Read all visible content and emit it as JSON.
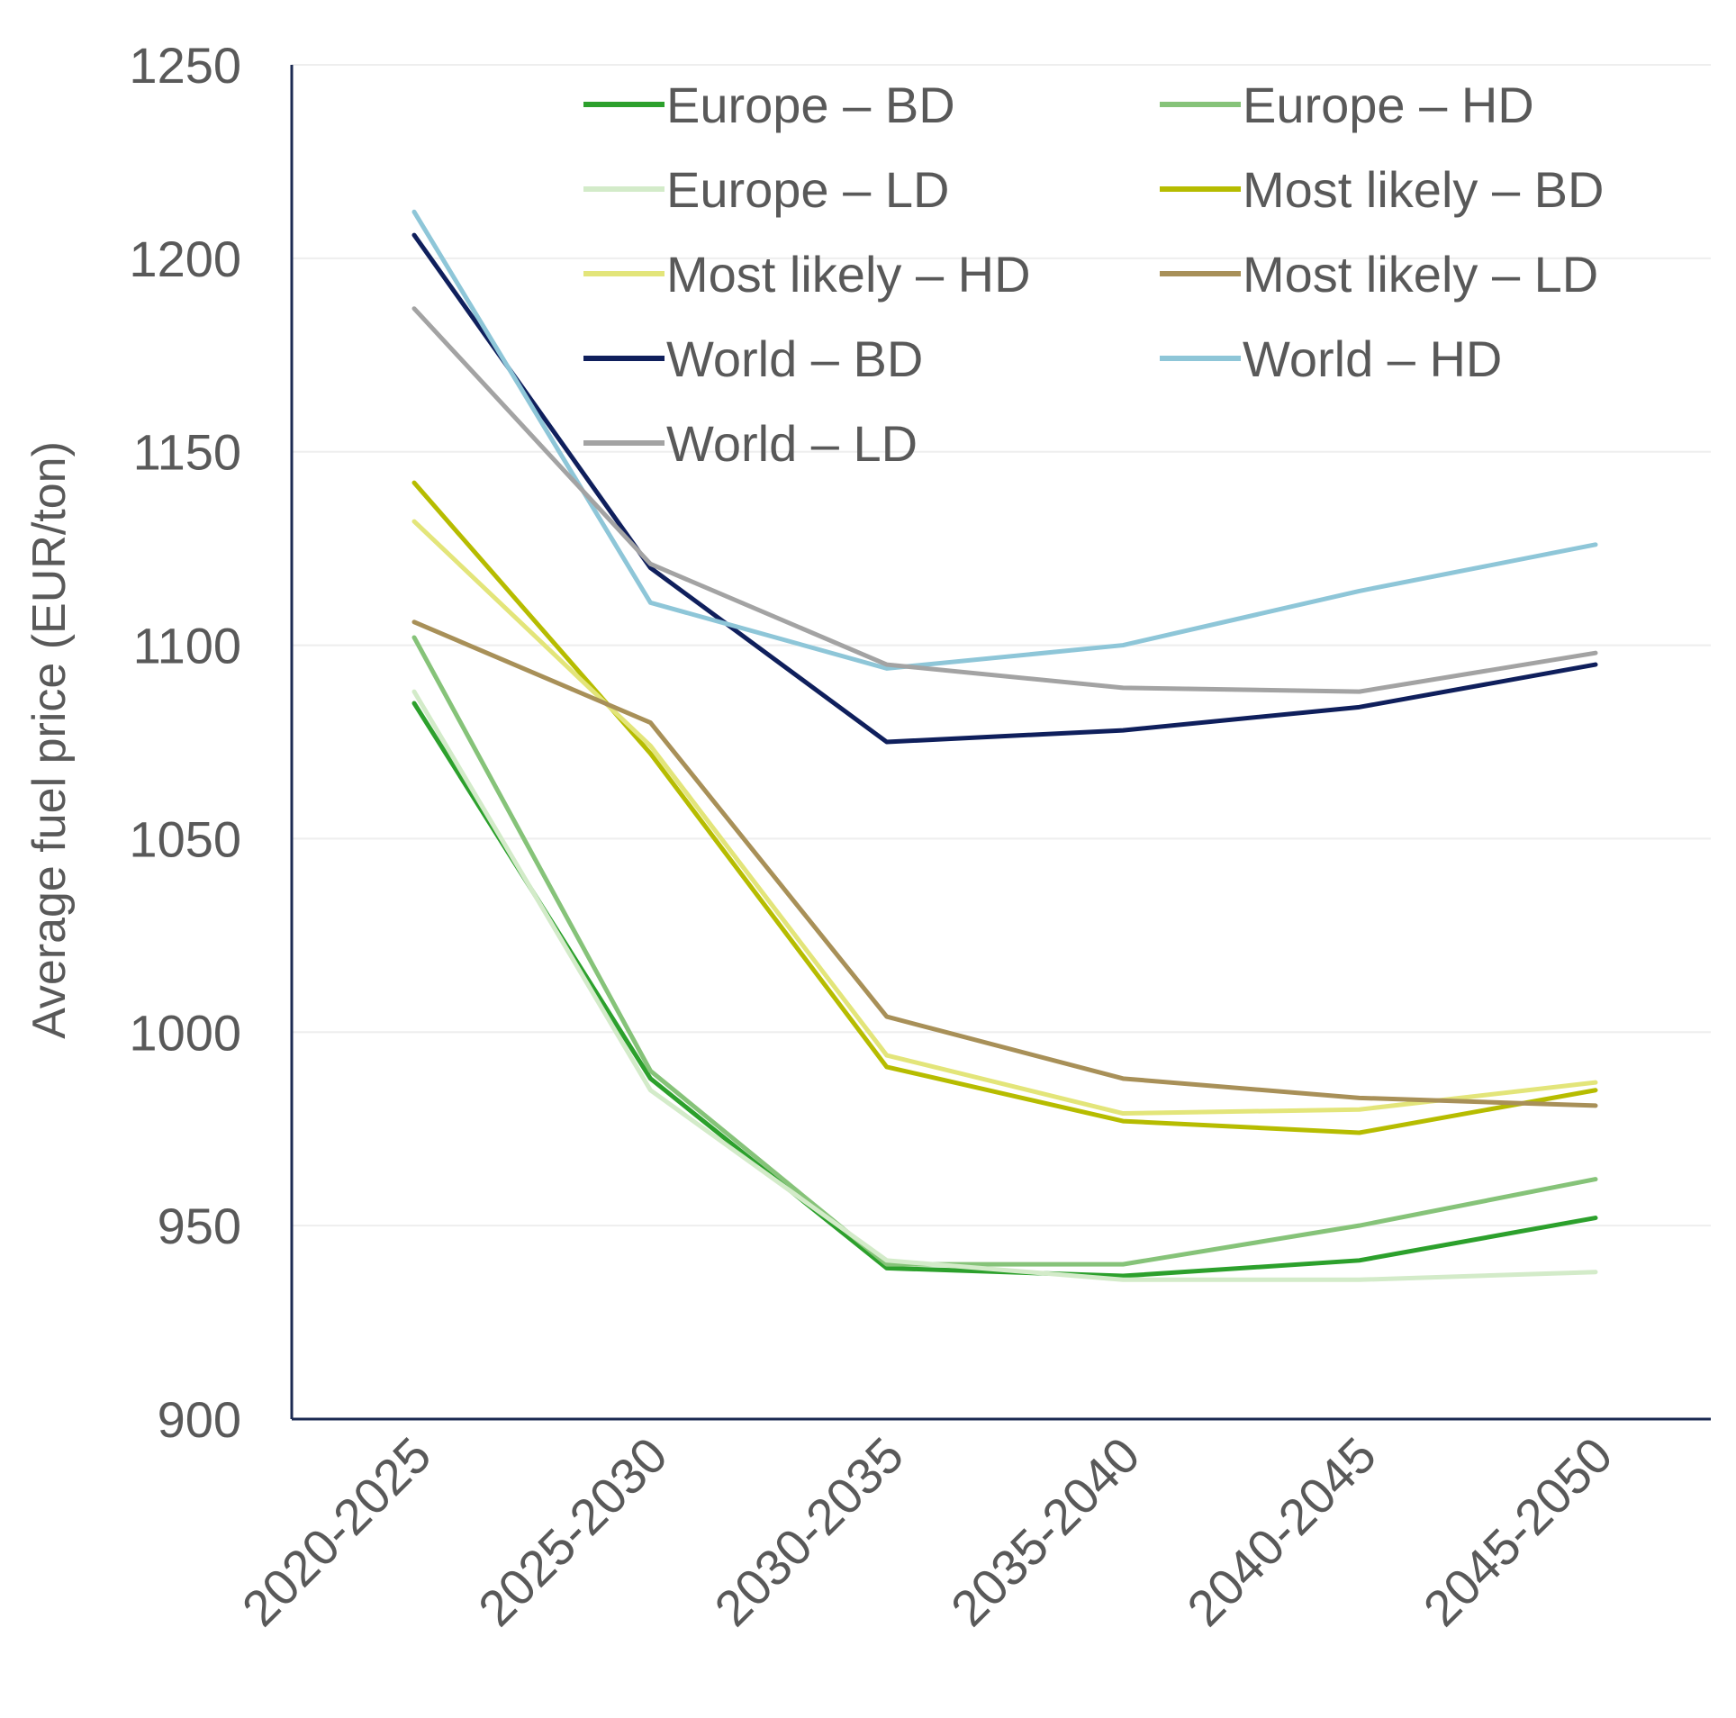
{
  "chart_data": {
    "type": "line",
    "title": "",
    "xlabel": "",
    "ylabel": "Average fuel price (EUR/ton)",
    "ylim": [
      900,
      1250
    ],
    "yticks": [
      "900",
      "950",
      "1000",
      "1050",
      "1100",
      "1150",
      "1200",
      "1250"
    ],
    "categories": [
      "2020-2025",
      "2025-2030",
      "2030-2035",
      "2035-2040",
      "2040-2045",
      "2045-2050"
    ],
    "grid": true,
    "legend_position": "top-right",
    "series": [
      {
        "name": "Europe – BD",
        "color": "#2ca02c",
        "values": [
          1085,
          988,
          939,
          937,
          941,
          952
        ]
      },
      {
        "name": "Europe – HD",
        "color": "#86c379",
        "values": [
          1102,
          990,
          940,
          940,
          950,
          962
        ]
      },
      {
        "name": "Europe – LD",
        "color": "#d3ebc9",
        "values": [
          1088,
          985,
          941,
          936,
          936,
          938
        ]
      },
      {
        "name": "Most likely – BD",
        "color": "#b6bc00",
        "values": [
          1142,
          1072,
          991,
          977,
          974,
          985
        ]
      },
      {
        "name": "Most likely – HD",
        "color": "#e3e57a",
        "values": [
          1132,
          1074,
          994,
          979,
          980,
          987
        ]
      },
      {
        "name": "Most likely – LD",
        "color": "#a89058",
        "values": [
          1106,
          1080,
          1004,
          988,
          983,
          981
        ]
      },
      {
        "name": "World – BD",
        "color": "#0f1f5c",
        "values": [
          1206,
          1120,
          1075,
          1078,
          1084,
          1095
        ]
      },
      {
        "name": "World – HD",
        "color": "#8ec6d8",
        "values": [
          1212,
          1111,
          1094,
          1100,
          1114,
          1126
        ]
      },
      {
        "name": "World – LD",
        "color": "#a3a3a3",
        "values": [
          1187,
          1121,
          1095,
          1089,
          1088,
          1098
        ]
      }
    ]
  }
}
